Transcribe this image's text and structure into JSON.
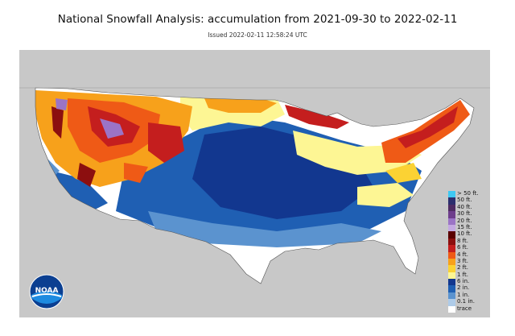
{
  "title": "National Snowfall Analysis: accumulation from 2021-09-30 to 2022-02-11",
  "subtitle": "Issued 2022-02-11 12:58:24 UTC",
  "logo": {
    "text": "NOAA",
    "icon": "noaa-logo"
  },
  "legend": [
    {
      "label": "> 50 ft.",
      "color": "#3ec8f2"
    },
    {
      "label": "50 ft.",
      "color": "#2c2e6e"
    },
    {
      "label": "40 ft.",
      "color": "#4e2b63"
    },
    {
      "label": "30 ft.",
      "color": "#6e3e8c"
    },
    {
      "label": "20 ft.",
      "color": "#9b74c6"
    },
    {
      "label": "15 ft.",
      "color": "#c4a9e2"
    },
    {
      "label": "10 ft.",
      "color": "#5a0000"
    },
    {
      "label": "8 ft.",
      "color": "#8c0f0f"
    },
    {
      "label": "6 ft.",
      "color": "#c41e1e"
    },
    {
      "label": "4 ft.",
      "color": "#ef5a16"
    },
    {
      "label": "3 ft.",
      "color": "#f7a11b"
    },
    {
      "label": "2 ft.",
      "color": "#fbd233"
    },
    {
      "label": "1 ft.",
      "color": "#fdf694"
    },
    {
      "label": "6 in.",
      "color": "#12378f"
    },
    {
      "label": "2 in.",
      "color": "#1f5fb3"
    },
    {
      "label": "1 in.",
      "color": "#5b93cf"
    },
    {
      "label": "0.1 in.",
      "color": "#aecbe8"
    },
    {
      "label": "trace",
      "color": "#ffffff"
    }
  ]
}
